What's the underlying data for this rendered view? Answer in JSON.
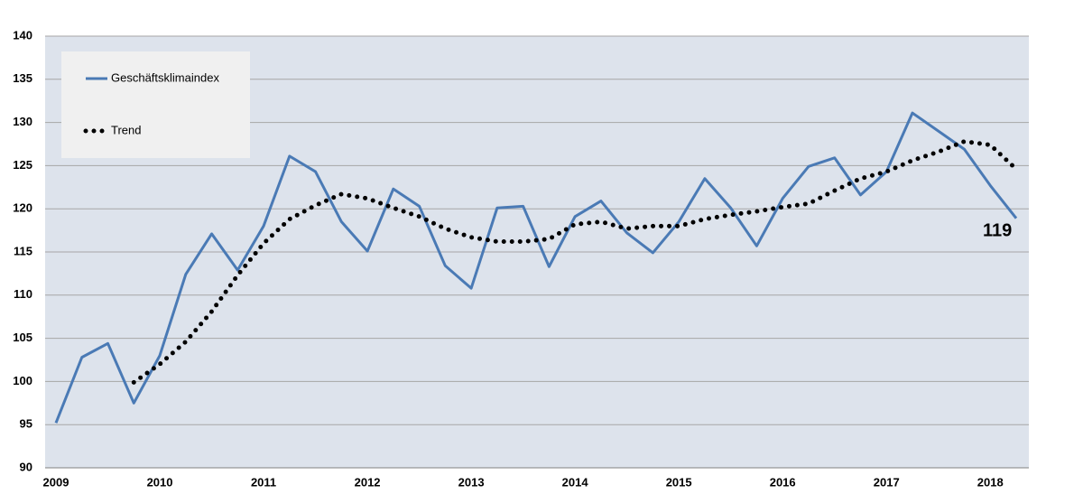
{
  "chart_data": {
    "type": "line",
    "categories": [
      "2009",
      null,
      null,
      null,
      "2010",
      null,
      null,
      null,
      "2011",
      null,
      null,
      null,
      "2012",
      null,
      null,
      null,
      "2013",
      null,
      null,
      null,
      "2014",
      null,
      null,
      null,
      "2015",
      null,
      null,
      null,
      "2016",
      null,
      null,
      null,
      "2017",
      null,
      null,
      null,
      "2018",
      null
    ],
    "series": [
      {
        "name": "Geschäftsklimaindex",
        "color": "#4a7ab5",
        "style": "solid",
        "values": [
          95.2,
          102.8,
          104.4,
          97.5,
          103,
          112.4,
          117.1,
          112.9,
          118,
          126.1,
          124.3,
          118.5,
          115.1,
          122.3,
          120.3,
          113.4,
          110.8,
          120.1,
          120.3,
          113.3,
          119.1,
          120.9,
          117.2,
          114.9,
          118.5,
          123.5,
          120.1,
          115.7,
          121.2,
          124.9,
          125.9,
          121.6,
          124.3,
          131.1,
          129,
          126.9,
          122.7,
          118.9
        ]
      },
      {
        "name": "Trend",
        "color": "#000000",
        "style": "dotted",
        "values": [
          null,
          null,
          null,
          99.9,
          102,
          104.6,
          108.1,
          112.3,
          116,
          118.8,
          120.4,
          121.7,
          121.2,
          120.1,
          119.1,
          117.7,
          116.7,
          116.2,
          116.2,
          116.5,
          118.2,
          118.5,
          117.7,
          118,
          118,
          118.8,
          119.3,
          119.7,
          120.2,
          120.6,
          122.1,
          123.5,
          124.3,
          125.6,
          126.6,
          127.8,
          127.4,
          124.6
        ]
      }
    ],
    "annotation": "119",
    "ylim": [
      90,
      140
    ],
    "yticks": [
      90,
      95,
      100,
      105,
      110,
      115,
      120,
      125,
      130,
      135,
      140
    ],
    "grid": true,
    "legend": "upper left"
  }
}
